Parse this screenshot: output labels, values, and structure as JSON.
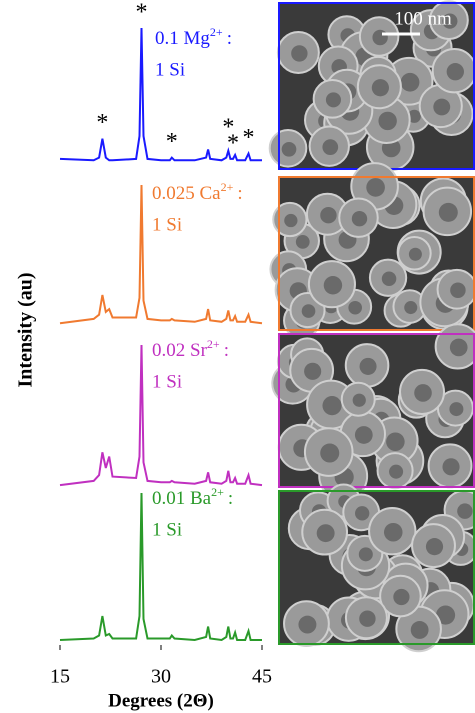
{
  "chart_data": {
    "type": "line",
    "x_label": "Degrees (2Θ)",
    "y_label": "Intensity (au)",
    "xlim": [
      15,
      45
    ],
    "xticks": [
      15,
      30,
      45
    ],
    "ylim": [
      0,
      100
    ],
    "scale_bar": "100 nm",
    "x": [
      15,
      20,
      20.8,
      21.3,
      21.8,
      22.3,
      22.8,
      26.3,
      26.8,
      27.1,
      27.4,
      28,
      30,
      31.3,
      31.6,
      32,
      35,
      36.7,
      37,
      37.3,
      39,
      39.7,
      40,
      40.3,
      40.7,
      41,
      41.3,
      42.5,
      43,
      43.3,
      45
    ],
    "series": [
      {
        "name": "0.1 Mg",
        "charge": "2+",
        "sep": ":",
        "ratio": "1 Si",
        "color": "#1a1aff",
        "values": [
          3,
          2,
          4,
          18,
          4,
          2,
          2,
          3,
          20,
          100,
          20,
          3,
          2,
          2,
          4,
          2,
          2,
          4,
          10,
          3,
          2,
          4,
          9,
          3,
          3,
          6,
          2,
          2,
          7,
          2,
          2
        ]
      },
      {
        "name": "0.025 Ca",
        "charge": "2+",
        "sep": ":",
        "ratio": "1 Si",
        "color": "#f07a30",
        "values": [
          2,
          5,
          8,
          22,
          10,
          12,
          6,
          6,
          20,
          100,
          18,
          5,
          4,
          4,
          5,
          4,
          3,
          5,
          12,
          4,
          3,
          5,
          11,
          4,
          4,
          7,
          3,
          3,
          8,
          3,
          2
        ]
      },
      {
        "name": "0.02 Sr",
        "charge": "2+",
        "sep": ":",
        "ratio": "1 Si",
        "color": "#c030c0",
        "values": [
          2,
          5,
          9,
          25,
          14,
          22,
          8,
          7,
          22,
          100,
          18,
          5,
          4,
          4,
          5,
          4,
          3,
          5,
          11,
          4,
          3,
          5,
          12,
          4,
          4,
          7,
          3,
          3,
          9,
          3,
          2
        ]
      },
      {
        "name": "0.01 Ba",
        "charge": "2+",
        "sep": ":",
        "ratio": "1 Si",
        "color": "#2a9a2a",
        "values": [
          2,
          3,
          5,
          18,
          5,
          6,
          3,
          3,
          18,
          100,
          16,
          3,
          3,
          3,
          5,
          3,
          2,
          4,
          11,
          3,
          2,
          4,
          11,
          3,
          3,
          7,
          2,
          2,
          8,
          2,
          2
        ]
      }
    ],
    "annotations": [
      {
        "x": 21.3,
        "text": "*"
      },
      {
        "x": 27.1,
        "text": "*"
      },
      {
        "x": 31.6,
        "text": "*"
      },
      {
        "x": 40,
        "text": "*"
      },
      {
        "x": 40.7,
        "text": "*"
      },
      {
        "x": 43,
        "text": "*"
      }
    ]
  }
}
